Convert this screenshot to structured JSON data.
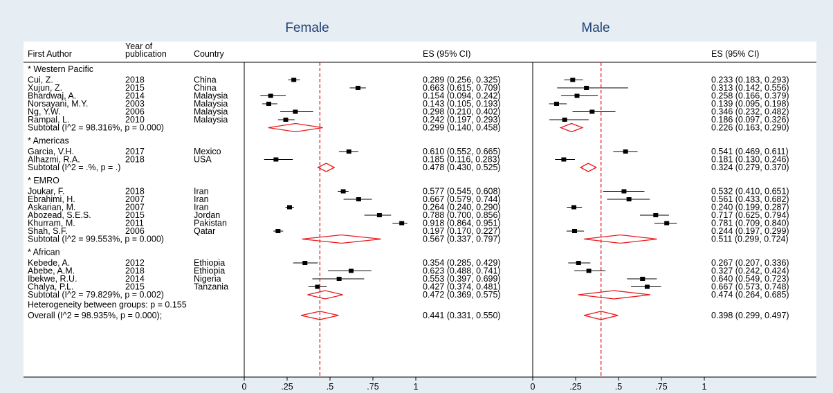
{
  "colors": {
    "background": "#e6eef4",
    "plot_area": "#ffffff",
    "panel_title": "#1f3f73",
    "text": "#000000",
    "diamond": "#e8191b",
    "overall_line": "#e8191b",
    "point": "#000000"
  },
  "headers": {
    "first_author": "First Author",
    "year_line1": "Year of",
    "year_line2": "publication",
    "country": "Country"
  },
  "chart_data": {
    "type": "forest",
    "xlim": [
      0,
      1
    ],
    "ticks": [
      "0",
      ".25",
      ".5",
      ".75",
      "1"
    ],
    "tick_values": [
      0,
      0.25,
      0.5,
      0.75,
      1
    ],
    "grid": false,
    "panels": [
      {
        "title": "Female",
        "es_header": "ES (95% CI)",
        "overall_line": 0.441,
        "groups": [
          {
            "name": "*   Western Pacific",
            "studies": [
              {
                "author": "Cui, Z.",
                "year": "2018",
                "country": "China",
                "es": 0.289,
                "lo": 0.256,
                "hi": 0.325,
                "label": "0.289 (0.256, 0.325)"
              },
              {
                "author": "Xujun, Z.",
                "year": "2015",
                "country": "China",
                "es": 0.663,
                "lo": 0.615,
                "hi": 0.709,
                "label": "0.663 (0.615, 0.709)"
              },
              {
                "author": "Bhardwaj, A.",
                "year": "2014",
                "country": "Malaysia",
                "es": 0.154,
                "lo": 0.094,
                "hi": 0.242,
                "label": "0.154 (0.094, 0.242)"
              },
              {
                "author": "Norsayani, M.Y.",
                "year": "2003",
                "country": "Malaysia",
                "es": 0.143,
                "lo": 0.105,
                "hi": 0.193,
                "label": "0.143 (0.105, 0.193)"
              },
              {
                "author": "Ng, Y.W.",
                "year": "2006",
                "country": "Malaysia",
                "es": 0.298,
                "lo": 0.21,
                "hi": 0.402,
                "label": "0.298 (0.210, 0.402)"
              },
              {
                "author": "Rampal, L.",
                "year": "2010",
                "country": "Malaysia",
                "es": 0.242,
                "lo": 0.197,
                "hi": 0.293,
                "label": "0.242 (0.197, 0.293)"
              }
            ],
            "subtotal": {
              "text": "Subtotal  (I^2 = 98.316%, p = 0.000)",
              "es": 0.299,
              "lo": 0.14,
              "hi": 0.458,
              "label": "0.299 (0.140, 0.458)"
            }
          },
          {
            "name": "*   Americas",
            "studies": [
              {
                "author": "Garcia, V.H.",
                "year": "2017",
                "country": "Mexico",
                "es": 0.61,
                "lo": 0.552,
                "hi": 0.665,
                "label": "0.610 (0.552, 0.665)"
              },
              {
                "author": "Alhazmi, R.A.",
                "year": "2018",
                "country": "USA",
                "es": 0.185,
                "lo": 0.116,
                "hi": 0.283,
                "label": "0.185 (0.116, 0.283)"
              }
            ],
            "subtotal": {
              "text": "Subtotal  (I^2 = .%, p = .)",
              "es": 0.478,
              "lo": 0.43,
              "hi": 0.525,
              "label": "0.478 (0.430, 0.525)"
            }
          },
          {
            "name": "*   EMRO",
            "studies": [
              {
                "author": "Joukar, F.",
                "year": "2018",
                "country": "Iran",
                "es": 0.577,
                "lo": 0.545,
                "hi": 0.608,
                "label": "0.577 (0.545, 0.608)"
              },
              {
                "author": "Ebrahimi, H.",
                "year": "2007",
                "country": "Iran",
                "es": 0.667,
                "lo": 0.579,
                "hi": 0.744,
                "label": "0.667 (0.579, 0.744)"
              },
              {
                "author": "Askarian, M.",
                "year": "2007",
                "country": "Iran",
                "es": 0.264,
                "lo": 0.24,
                "hi": 0.29,
                "label": "0.264 (0.240, 0.290)"
              },
              {
                "author": "Abozead, S.E.S.",
                "year": "2015",
                "country": "Jordan",
                "es": 0.788,
                "lo": 0.7,
                "hi": 0.856,
                "label": "0.788 (0.700, 0.856)"
              },
              {
                "author": "Khurram, M.",
                "year": "2011",
                "country": "Pakistan",
                "es": 0.918,
                "lo": 0.864,
                "hi": 0.951,
                "label": "0.918 (0.864, 0.951)"
              },
              {
                "author": "Shah, S.F.",
                "year": "2006",
                "country": "Qatar",
                "es": 0.197,
                "lo": 0.17,
                "hi": 0.227,
                "label": "0.197 (0.170, 0.227)"
              }
            ],
            "subtotal": {
              "text": "Subtotal  (I^2 = 99.553%, p = 0.000)",
              "es": 0.567,
              "lo": 0.337,
              "hi": 0.797,
              "label": "0.567 (0.337, 0.797)"
            }
          },
          {
            "name": "*   African",
            "studies": [
              {
                "author": "Kebede, A.",
                "year": "2012",
                "country": "Ethiopia",
                "es": 0.354,
                "lo": 0.285,
                "hi": 0.429,
                "label": "0.354 (0.285, 0.429)"
              },
              {
                "author": "Abebe, A.M.",
                "year": "2018",
                "country": "Ethiopia",
                "es": 0.623,
                "lo": 0.488,
                "hi": 0.741,
                "label": "0.623 (0.488, 0.741)"
              },
              {
                "author": "Ibekwe, R.U.",
                "year": "2014",
                "country": "Nigeria",
                "es": 0.553,
                "lo": 0.397,
                "hi": 0.699,
                "label": "0.553 (0.397, 0.699)"
              },
              {
                "author": "Chalya, P.L.",
                "year": "2015",
                "country": "Tanzania",
                "es": 0.427,
                "lo": 0.374,
                "hi": 0.481,
                "label": "0.427 (0.374, 0.481)"
              }
            ],
            "subtotal": {
              "text": "Subtotal  (I^2 = 79.829%, p = 0.002)",
              "es": 0.472,
              "lo": 0.369,
              "hi": 0.575,
              "label": "0.472 (0.369, 0.575)"
            }
          }
        ],
        "heterogeneity": "Heterogeneity between groups: p = 0.155",
        "overall": {
          "text": "Overall  (I^2 = 98.935%, p = 0.000);",
          "es": 0.441,
          "lo": 0.331,
          "hi": 0.55,
          "label": "0.441 (0.331, 0.550)"
        }
      },
      {
        "title": "Male",
        "es_header": "ES (95% CI)",
        "overall_line": 0.398,
        "groups": [
          {
            "studies": [
              {
                "es": 0.233,
                "lo": 0.183,
                "hi": 0.293,
                "label": "0.233 (0.183, 0.293)"
              },
              {
                "es": 0.313,
                "lo": 0.142,
                "hi": 0.556,
                "label": "0.313 (0.142, 0.556)"
              },
              {
                "es": 0.258,
                "lo": 0.166,
                "hi": 0.379,
                "label": "0.258 (0.166, 0.379)"
              },
              {
                "es": 0.139,
                "lo": 0.095,
                "hi": 0.198,
                "label": "0.139 (0.095, 0.198)"
              },
              {
                "es": 0.346,
                "lo": 0.232,
                "hi": 0.482,
                "label": "0.346 (0.232, 0.482)"
              },
              {
                "es": 0.186,
                "lo": 0.097,
                "hi": 0.326,
                "label": "0.186 (0.097, 0.326)"
              }
            ],
            "subtotal": {
              "es": 0.226,
              "lo": 0.163,
              "hi": 0.29,
              "label": "0.226 (0.163, 0.290)"
            }
          },
          {
            "studies": [
              {
                "es": 0.541,
                "lo": 0.469,
                "hi": 0.611,
                "label": "0.541 (0.469, 0.611)"
              },
              {
                "es": 0.181,
                "lo": 0.13,
                "hi": 0.246,
                "label": "0.181 (0.130, 0.246)"
              }
            ],
            "subtotal": {
              "es": 0.324,
              "lo": 0.279,
              "hi": 0.37,
              "label": "0.324 (0.279, 0.370)"
            }
          },
          {
            "studies": [
              {
                "es": 0.532,
                "lo": 0.41,
                "hi": 0.651,
                "label": "0.532 (0.410, 0.651)"
              },
              {
                "es": 0.561,
                "lo": 0.433,
                "hi": 0.682,
                "label": "0.561 (0.433, 0.682)"
              },
              {
                "es": 0.24,
                "lo": 0.199,
                "hi": 0.287,
                "label": "0.240 (0.199, 0.287)"
              },
              {
                "es": 0.717,
                "lo": 0.625,
                "hi": 0.794,
                "label": "0.717 (0.625, 0.794)"
              },
              {
                "es": 0.781,
                "lo": 0.709,
                "hi": 0.84,
                "label": "0.781 (0.709, 0.840)"
              },
              {
                "es": 0.244,
                "lo": 0.197,
                "hi": 0.299,
                "label": "0.244 (0.197, 0.299)"
              }
            ],
            "subtotal": {
              "es": 0.511,
              "lo": 0.299,
              "hi": 0.724,
              "label": "0.511 (0.299, 0.724)"
            }
          },
          {
            "studies": [
              {
                "es": 0.267,
                "lo": 0.207,
                "hi": 0.336,
                "label": "0.267 (0.207, 0.336)"
              },
              {
                "es": 0.327,
                "lo": 0.242,
                "hi": 0.424,
                "label": "0.327 (0.242, 0.424)"
              },
              {
                "es": 0.64,
                "lo": 0.549,
                "hi": 0.723,
                "label": "0.640 (0.549, 0.723)"
              },
              {
                "es": 0.667,
                "lo": 0.573,
                "hi": 0.748,
                "label": "0.667 (0.573, 0.748)"
              }
            ],
            "subtotal": {
              "es": 0.474,
              "lo": 0.264,
              "hi": 0.685,
              "label": "0.474 (0.264, 0.685)"
            }
          }
        ],
        "overall": {
          "es": 0.398,
          "lo": 0.299,
          "hi": 0.497,
          "label": "0.398 (0.299, 0.497)"
        }
      }
    ]
  }
}
